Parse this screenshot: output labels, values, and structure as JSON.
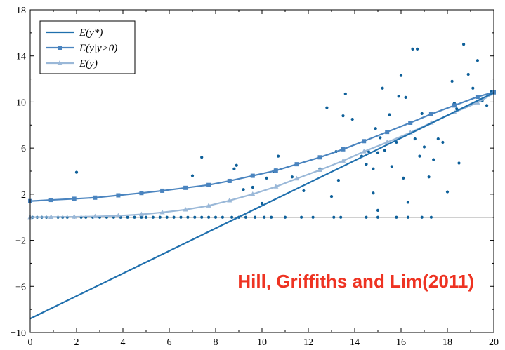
{
  "chart_data": {
    "type": "scatter",
    "xlim": [
      0,
      20
    ],
    "ylim": [
      -10,
      18
    ],
    "x_ticks": [
      0,
      2,
      4,
      6,
      8,
      10,
      12,
      14,
      16,
      18,
      20
    ],
    "y_ticks": [
      -10,
      -6,
      -2,
      2,
      6,
      10,
      14,
      18
    ],
    "grid": false,
    "legend_position": "top-left",
    "horizontal_reference_line": 0,
    "annotation": {
      "text": "Hill, Griffiths and Lim(2011)",
      "color": "#ee3322"
    },
    "lines": [
      {
        "name": "E(y*)",
        "legend_label": "E(y*)",
        "color": "#1f6fad",
        "marker": "none",
        "x": [
          0,
          20
        ],
        "y": [
          -8.8,
          10.8
        ]
      },
      {
        "name": "E(y|y>0)",
        "legend_label": "E(y|y>0)",
        "color": "#4a84bf",
        "marker": "square",
        "x": [
          0,
          0.9,
          1.9,
          2.8,
          3.8,
          4.8,
          5.7,
          6.7,
          7.7,
          8.6,
          9.6,
          10.6,
          11.5,
          12.5,
          13.5,
          14.4,
          15.4,
          16.4,
          17.3,
          18.3,
          19.3,
          20
        ],
        "y": [
          1.4,
          1.5,
          1.6,
          1.7,
          1.9,
          2.1,
          2.3,
          2.55,
          2.8,
          3.15,
          3.6,
          4.05,
          4.6,
          5.2,
          5.9,
          6.6,
          7.4,
          8.2,
          8.95,
          9.7,
          10.45,
          10.85
        ]
      },
      {
        "name": "E(y)",
        "legend_label": "E(y)",
        "color": "#9ab8d8",
        "marker": "triangle",
        "x": [
          0,
          0.9,
          1.9,
          2.8,
          3.8,
          4.8,
          5.7,
          6.7,
          7.7,
          8.6,
          9.6,
          10.6,
          11.5,
          12.5,
          13.5,
          14.4,
          15.4,
          16.4,
          17.3,
          18.3,
          19.3,
          20
        ],
        "y": [
          0.0,
          0.02,
          0.04,
          0.07,
          0.13,
          0.25,
          0.42,
          0.66,
          1.0,
          1.45,
          2.0,
          2.65,
          3.35,
          4.1,
          4.9,
          5.7,
          6.5,
          7.35,
          8.2,
          9.1,
          9.95,
          10.75
        ]
      }
    ],
    "scatter": {
      "name": "observations",
      "color": "#0d5f99",
      "x": [
        0.1,
        0.3,
        0.5,
        0.7,
        0.9,
        1.2,
        1.4,
        1.6,
        1.9,
        2.2,
        2.4,
        2.7,
        3.0,
        3.3,
        3.6,
        3.9,
        4.2,
        4.5,
        4.8,
        5.0,
        5.3,
        5.6,
        5.9,
        6.2,
        6.5,
        6.8,
        7.1,
        7.4,
        7.7,
        8.0,
        8.3,
        8.7,
        9.0,
        9.3,
        9.7,
        10.1,
        10.4,
        11.0,
        11.7,
        12.2,
        13.1,
        13.4,
        14.5,
        15.0,
        15.8,
        16.3,
        16.9,
        17.3,
        2.0,
        7.0,
        7.4,
        8.8,
        8.9,
        9.2,
        9.6,
        10.0,
        10.2,
        10.5,
        10.6,
        10.7,
        11.3,
        11.8,
        12.5,
        12.8,
        13.0,
        13.2,
        13.3,
        13.5,
        13.6,
        13.9,
        14.3,
        14.5,
        14.6,
        14.8,
        14.9,
        15.0,
        15.1,
        15.2,
        15.3,
        15.5,
        15.6,
        15.8,
        15.9,
        16.0,
        16.1,
        16.2,
        16.3,
        16.5,
        16.6,
        16.7,
        16.8,
        16.9,
        17.0,
        17.2,
        17.4,
        17.6,
        17.8,
        18.0,
        18.2,
        18.3,
        18.4,
        18.5,
        18.7,
        18.9,
        19.1,
        19.3,
        19.5,
        19.7,
        19.9,
        15.0,
        14.8
      ],
      "y": [
        0,
        0,
        0,
        0,
        0,
        0,
        0,
        0,
        0,
        0,
        0,
        0,
        0,
        0,
        0,
        0,
        0,
        0,
        0,
        0,
        0,
        0,
        0,
        0,
        0,
        0,
        0,
        0,
        0,
        0,
        0,
        0,
        0,
        0,
        0,
        0,
        0,
        0,
        0,
        0,
        0,
        0,
        0,
        0,
        0,
        0,
        0,
        0,
        3.9,
        3.6,
        5.2,
        4.2,
        4.5,
        2.4,
        2.6,
        1.2,
        3.4,
        4.0,
        4.1,
        5.3,
        3.5,
        2.3,
        4.2,
        9.5,
        1.8,
        5.7,
        3.2,
        8.8,
        10.7,
        8.5,
        5.3,
        4.6,
        5.7,
        4.2,
        7.7,
        5.6,
        6.9,
        11.2,
        5.8,
        8.9,
        4.4,
        6.5,
        10.5,
        12.3,
        3.4,
        10.4,
        1.3,
        14.6,
        6.8,
        14.6,
        5.3,
        9.0,
        6.1,
        3.5,
        5.0,
        6.8,
        6.5,
        2.2,
        11.8,
        9.9,
        9.4,
        4.7,
        15.0,
        12.4,
        11.2,
        13.6,
        10.1,
        9.7,
        10.9,
        0.6,
        2.1
      ]
    }
  }
}
